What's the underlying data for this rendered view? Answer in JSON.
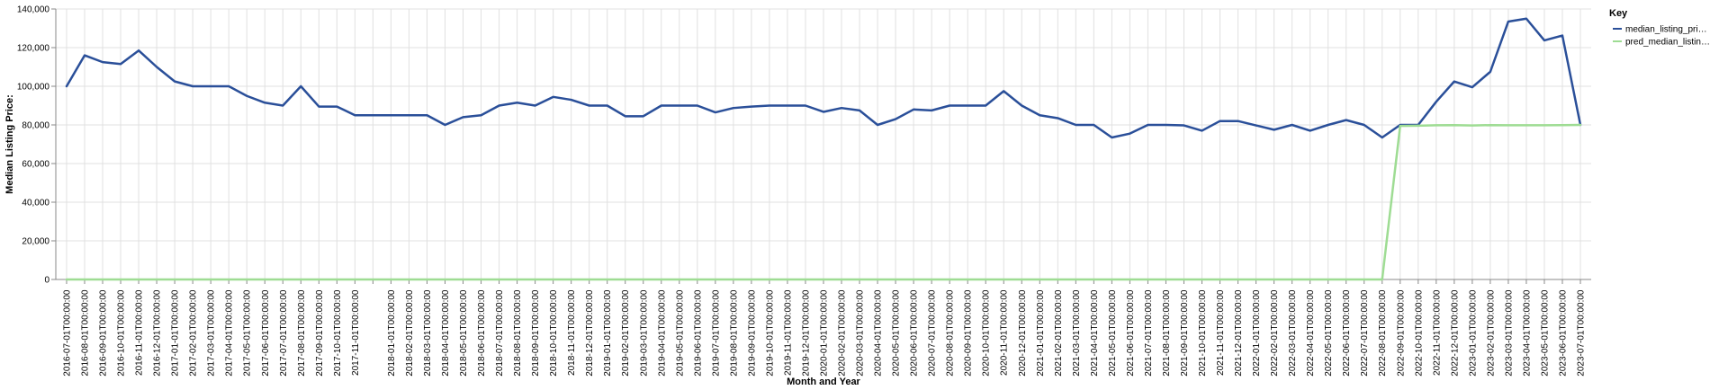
{
  "chart_data": {
    "type": "line",
    "xlabel": "Month and Year",
    "ylabel": "Median Listing Price:",
    "ylim": [
      0,
      140000
    ],
    "yticks": [
      "0",
      "20,000",
      "40,000",
      "60,000",
      "80,000",
      "100,000",
      "120,000",
      "140,000"
    ],
    "grid": true,
    "legend": {
      "title": "Key",
      "placement": "top-right",
      "entries": [
        "median_listing_pri…",
        "pred_median_listin…"
      ]
    },
    "x": [
      "2016-07-01T00:00:00",
      "2016-08-01T00:00:00",
      "2016-09-01T00:00:00",
      "2016-10-01T00:00:00",
      "2016-11-01T00:00:00",
      "2016-12-01T00:00:00",
      "2017-01-01T00:00:00",
      "2017-02-01T00:00:00",
      "2017-03-01T00:00:00",
      "2017-04-01T00:00:00",
      "2017-05-01T00:00:00",
      "2017-06-01T00:00:00",
      "2017-07-01T00:00:00",
      "2017-08-01T00:00:00",
      "2017-09-01T00:00:00",
      "2017-10-01T00:00:00",
      "2017-11-01T00:00:00",
      "2017-12-01T00:00:00",
      "2018-01-01T00:00:00",
      "2018-02-01T00:00:00",
      "2018-03-01T00:00:00",
      "2018-04-01T00:00:00",
      "2018-05-01T00:00:00",
      "2018-06-01T00:00:00",
      "2018-07-01T00:00:00",
      "2018-08-01T00:00:00",
      "2018-09-01T00:00:00",
      "2018-10-01T00:00:00",
      "2018-11-01T00:00:00",
      "2018-12-01T00:00:00",
      "2019-01-01T00:00:00",
      "2019-02-01T00:00:00",
      "2019-03-01T00:00:00",
      "2019-04-01T00:00:00",
      "2019-05-01T00:00:00",
      "2019-06-01T00:00:00",
      "2019-07-01T00:00:00",
      "2019-08-01T00:00:00",
      "2019-09-01T00:00:00",
      "2019-10-01T00:00:00",
      "2019-11-01T00:00:00",
      "2019-12-01T00:00:00",
      "2020-01-01T00:00:00",
      "2020-02-01T00:00:00",
      "2020-03-01T00:00:00",
      "2020-04-01T00:00:00",
      "2020-05-01T00:00:00",
      "2020-06-01T00:00:00",
      "2020-07-01T00:00:00",
      "2020-08-01T00:00:00",
      "2020-09-01T00:00:00",
      "2020-10-01T00:00:00",
      "2020-11-01T00:00:00",
      "2020-12-01T00:00:00",
      "2021-01-01T00:00:00",
      "2021-02-01T00:00:00",
      "2021-03-01T00:00:00",
      "2021-04-01T00:00:00",
      "2021-05-01T00:00:00",
      "2021-06-01T00:00:00",
      "2021-07-01T00:00:00",
      "2021-08-01T00:00:00",
      "2021-09-01T00:00:00",
      "2021-10-01T00:00:00",
      "2021-11-01T00:00:00",
      "2021-12-01T00:00:00",
      "2022-01-01T00:00:00",
      "2022-02-01T00:00:00",
      "2022-03-01T00:00:00",
      "2022-04-01T00:00:00",
      "2022-05-01T00:00:00",
      "2022-06-01T00:00:00",
      "2022-07-01T00:00:00",
      "2022-08-01T00:00:00",
      "2022-09-01T00:00:00",
      "2022-10-01T00:00:00",
      "2022-11-01T00:00:00",
      "2022-12-01T00:00:00",
      "2023-01-01T00:00:00",
      "2023-02-01T00:00:00",
      "2023-03-01T00:00:00",
      "2023-04-01T00:00:00",
      "2023-05-01T00:00:00",
      "2023-06-01T00:00:00",
      "2023-07-01T00:00:00"
    ],
    "xtick_labels": [
      "2016-07-01T00:00:00",
      "2016-08-01T00:00:00",
      "2016-09-01T00:00:00",
      "2016-10-01T00:00:00",
      "2016-11-01T00:00:00",
      "2016-12-01T00:00:00",
      "2017-01-01T00:00:00",
      "2017-02-01T00:00:00",
      "2017-03-01T00:00:00",
      "2017-04-01T00:00:00",
      "2017-05-01T00:00:00",
      "2017-06-01T00:00:00",
      "2017-07-01T00:00:00",
      "2017-08-01T00:00:00",
      "2017-09-01T00:00:00",
      "2017-10-01T00:00:00",
      "2017-11-01T00:00:00",
      "2018-01-01T00:00:00",
      "2018-02-01T00:00:00",
      "2018-03-01T00:00:00",
      "2018-04-01T00:00:00",
      "2018-05-01T00:00:00",
      "2018-06-01T00:00:00",
      "2018-07-01T00:00:00",
      "2018-08-01T00:00:00",
      "2018-09-01T00:00:00",
      "2018-10-01T00:00:00",
      "2018-11-01T00:00:00",
      "2018-12-01T00:00:00",
      "2019-01-01T00:00:00",
      "2019-02-01T00:00:00",
      "2019-03-01T00:00:00",
      "2019-04-01T00:00:00",
      "2019-05-01T00:00:00",
      "2019-06-01T00:00:00",
      "2019-07-01T00:00:00",
      "2019-08-01T00:00:00",
      "2019-09-01T00:00:00",
      "2019-10-01T00:00:00",
      "2019-11-01T00:00:00",
      "2019-12-01T00:00:00",
      "2020-01-01T00:00:00",
      "2020-02-01T00:00:00",
      "2020-03-01T00:00:00",
      "2020-04-01T00:00:00",
      "2020-05-01T00:00:00",
      "2020-06-01T00:00:00",
      "2020-07-01T00:00:00",
      "2020-08-01T00:00:00",
      "2020-09-01T00:00:00",
      "2020-10-01T00:00:00",
      "2020-11-01T00:00:00",
      "2020-12-01T00:00:00",
      "2021-01-01T00:00:00",
      "2021-02-01T00:00:00",
      "2021-03-01T00:00:00",
      "2021-04-01T00:00:00",
      "2021-05-01T00:00:00",
      "2021-06-01T00:00:00",
      "2021-07-01T00:00:00",
      "2021-08-01T00:00:00",
      "2021-09-01T00:00:00",
      "2021-10-01T00:00:00",
      "2021-11-01T00:00:00",
      "2021-12-01T00:00:00",
      "2022-01-01T00:00:00",
      "2022-02-01T00:00:00",
      "2022-03-01T00:00:00",
      "2022-04-01T00:00:00",
      "2022-05-01T00:00:00",
      "2022-06-01T00:00:00",
      "2022-07-01T00:00:00",
      "2022-08-01T00:00:00",
      "2022-09-01T00:00:00",
      "2022-10-01T00:00:00",
      "2022-11-01T00:00:00",
      "2022-12-01T00:00:00",
      "2023-01-01T00:00:00",
      "2023-02-01T00:00:00",
      "2023-03-01T00:00:00",
      "2023-04-01T00:00:00",
      "2023-05-01T00:00:00",
      "2023-06-01T00:00:00",
      "2023-07-01T00:00:00"
    ],
    "series": [
      {
        "name": "median_listing_pri…",
        "color": "#2a4f99",
        "values": [
          100000,
          116000,
          112500,
          111500,
          118500,
          110000,
          102500,
          100000,
          100000,
          100000,
          95000,
          91500,
          90000,
          100000,
          89500,
          89500,
          85000,
          85000,
          85000,
          85000,
          85000,
          80000,
          84000,
          85000,
          90000,
          91500,
          90000,
          94500,
          93000,
          90000,
          90000,
          84500,
          84500,
          90000,
          90000,
          90000,
          86500,
          88750,
          89500,
          90000,
          90000,
          90000,
          86750,
          88750,
          87500,
          80000,
          83000,
          88000,
          87500,
          90000,
          90000,
          90000,
          97500,
          90000,
          85000,
          83500,
          80000,
          80000,
          73500,
          75500,
          80000,
          80000,
          79750,
          77000,
          82000,
          82000,
          79750,
          77500,
          80000,
          77000,
          80000,
          82500,
          80000,
          73500,
          80000,
          80000,
          92000,
          102500,
          99500,
          107500,
          133500,
          135000,
          123750,
          126250,
          80000
        ]
      },
      {
        "name": "pred_median_listin…",
        "color": "#9edc93",
        "values": [
          0,
          0,
          0,
          0,
          0,
          0,
          0,
          0,
          0,
          0,
          0,
          0,
          0,
          0,
          0,
          0,
          0,
          0,
          0,
          0,
          0,
          0,
          0,
          0,
          0,
          0,
          0,
          0,
          0,
          0,
          0,
          0,
          0,
          0,
          0,
          0,
          0,
          0,
          0,
          0,
          0,
          0,
          0,
          0,
          0,
          0,
          0,
          0,
          0,
          0,
          0,
          0,
          0,
          0,
          0,
          0,
          0,
          0,
          0,
          0,
          0,
          0,
          0,
          0,
          0,
          0,
          0,
          0,
          0,
          0,
          0,
          0,
          0,
          0,
          79500,
          79600,
          79800,
          79900,
          79700,
          79900,
          79800,
          79850,
          79850,
          79900,
          80000
        ]
      }
    ]
  }
}
